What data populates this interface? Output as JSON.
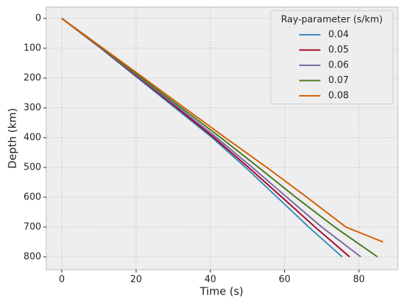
{
  "chart_data": {
    "type": "line",
    "xlabel": "Time (s)",
    "ylabel": "Depth (km)",
    "legend_title": "Ray-parameter (s/km)",
    "legend_loc": "upper right",
    "xlim": [
      -4.2,
      90.5
    ],
    "ylim": [
      843,
      -38
    ],
    "xticks": [
      0,
      20,
      40,
      60,
      80
    ],
    "yticks": [
      0,
      100,
      200,
      300,
      400,
      500,
      600,
      700,
      800
    ],
    "grid": true,
    "series": [
      {
        "name": "0.04",
        "color": "#348ABD",
        "x": [
          0,
          10.5,
          20.5,
          30.5,
          40.5,
          49.5,
          58,
          66.5,
          75.5
        ],
        "values": [
          0,
          100,
          200,
          300,
          400,
          500,
          600,
          700,
          800
        ]
      },
      {
        "name": "0.05",
        "color": "#A60628",
        "x": [
          0,
          10.6,
          20.8,
          31,
          41,
          50.3,
          59.3,
          68.2,
          77.5
        ],
        "values": [
          0,
          100,
          200,
          300,
          400,
          500,
          600,
          700,
          800
        ]
      },
      {
        "name": "0.06",
        "color": "#7A68A6",
        "x": [
          0,
          10.7,
          21.1,
          31.5,
          41.7,
          51.3,
          60.6,
          70,
          80.5
        ],
        "values": [
          0,
          100,
          200,
          300,
          400,
          500,
          600,
          700,
          800
        ]
      },
      {
        "name": "0.07",
        "color": "#467821",
        "x": [
          0,
          10.9,
          21.5,
          32.2,
          42.8,
          53,
          63,
          73.5,
          85
        ],
        "values": [
          0,
          100,
          200,
          300,
          400,
          500,
          600,
          700,
          800
        ]
      },
      {
        "name": "0.08",
        "color": "#D55E00",
        "x": [
          0,
          11.1,
          22.1,
          33,
          44,
          55.2,
          66,
          76.5,
          86.5
        ],
        "values": [
          0,
          100,
          200,
          300,
          400,
          500,
          600,
          700,
          750
        ]
      }
    ]
  }
}
